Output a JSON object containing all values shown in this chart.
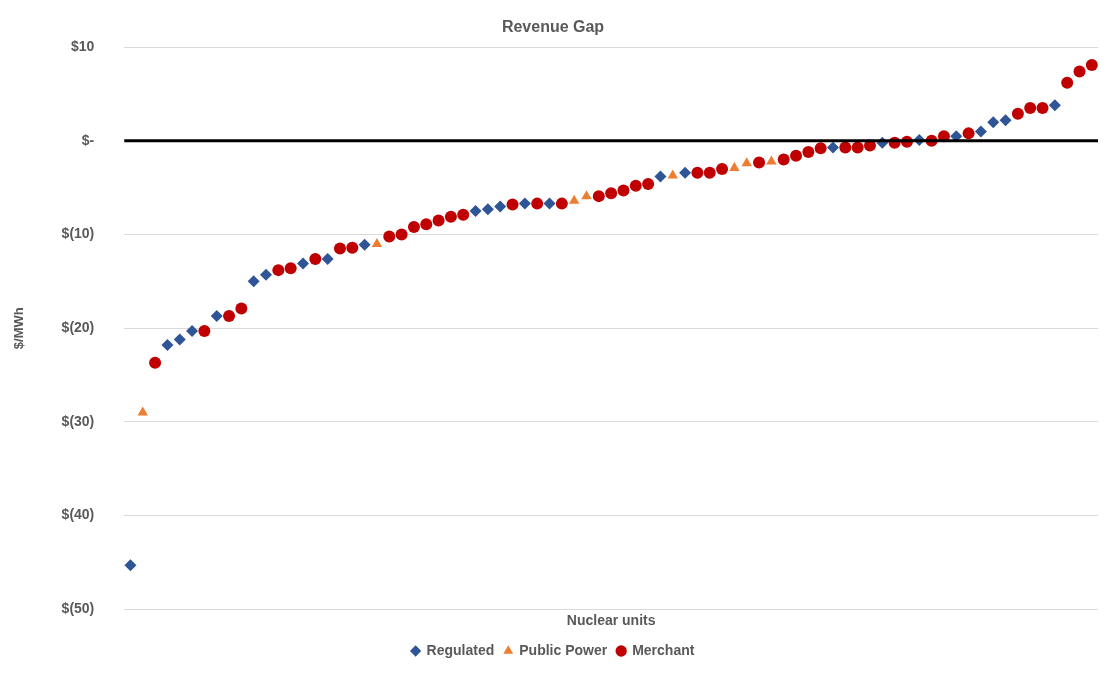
{
  "chart_data": {
    "type": "scatter",
    "title": "Revenue Gap",
    "xlabel": "Nuclear units",
    "ylabel": "$/MWh",
    "categories": [
      null,
      null,
      null,
      null,
      null,
      null,
      null,
      null,
      null,
      null,
      null,
      null,
      null,
      null,
      null,
      null,
      null,
      null,
      null,
      null,
      null,
      null,
      null,
      null,
      null,
      null,
      null,
      null,
      null,
      null,
      null,
      null,
      null,
      null,
      null,
      null,
      null,
      null,
      null,
      null,
      null,
      null,
      null,
      null,
      null,
      null,
      null,
      null,
      null,
      null,
      null,
      null,
      null,
      null,
      null,
      null,
      null,
      null,
      null,
      null,
      null,
      null,
      null,
      null,
      null,
      null,
      null,
      null,
      null,
      null,
      null,
      null,
      null,
      null,
      null,
      null,
      null,
      null,
      null
    ],
    "series": [
      {
        "name": "Regulated",
        "color": "#2f5597",
        "marker": "diamond",
        "values": [
          -45.3,
          null,
          null,
          -21.8,
          -21.2,
          -20.3,
          null,
          -18.7,
          null,
          null,
          -15.0,
          -14.3,
          null,
          null,
          -13.1,
          null,
          -12.6,
          null,
          null,
          -11.1,
          null,
          null,
          null,
          null,
          null,
          null,
          null,
          null,
          -7.5,
          -7.3,
          -7.0,
          null,
          -6.7,
          null,
          -6.7,
          null,
          null,
          null,
          null,
          null,
          null,
          null,
          null,
          -3.8,
          null,
          -3.4,
          null,
          null,
          null,
          null,
          null,
          null,
          null,
          null,
          null,
          null,
          null,
          -0.7,
          null,
          null,
          null,
          -0.2,
          null,
          null,
          0.1,
          null,
          null,
          0.5,
          null,
          1.0,
          2.0,
          2.2,
          null,
          null,
          null,
          3.8,
          null,
          null,
          null
        ]
      },
      {
        "name": "Public Power",
        "color": "#ed7d31",
        "marker": "triangle",
        "values": [
          null,
          -29,
          null,
          null,
          null,
          null,
          null,
          null,
          null,
          null,
          null,
          null,
          null,
          null,
          null,
          null,
          null,
          null,
          null,
          null,
          -11.0,
          null,
          null,
          null,
          null,
          null,
          null,
          null,
          null,
          null,
          null,
          null,
          null,
          null,
          null,
          null,
          -6.4,
          -5.9,
          null,
          null,
          null,
          null,
          null,
          null,
          -3.7,
          null,
          null,
          null,
          null,
          -2.9,
          -2.4,
          null,
          -2.2,
          null,
          null,
          null,
          null,
          null,
          null,
          null,
          null,
          null,
          null,
          null,
          null,
          null,
          null,
          null,
          null,
          null,
          null,
          null,
          null,
          null,
          null,
          null,
          null,
          null,
          null
        ]
      },
      {
        "name": "Merchant",
        "color": "#c00000",
        "marker": "circle",
        "values": [
          null,
          null,
          -23.7,
          null,
          null,
          null,
          -20.3,
          null,
          -18.7,
          -17.9,
          null,
          null,
          -13.8,
          -13.6,
          null,
          -12.6,
          null,
          -11.5,
          -11.4,
          null,
          null,
          -10.2,
          -10.0,
          -9.2,
          -8.9,
          -8.5,
          -8.1,
          -7.9,
          null,
          null,
          null,
          -6.8,
          null,
          -6.7,
          null,
          -6.7,
          null,
          null,
          -5.9,
          -5.6,
          -5.3,
          -4.8,
          -4.6,
          null,
          null,
          null,
          -3.4,
          -3.4,
          -3.0,
          null,
          null,
          -2.3,
          null,
          -2.0,
          -1.6,
          -1.2,
          -0.8,
          null,
          -0.7,
          -0.7,
          -0.5,
          null,
          -0.2,
          -0.1,
          null,
          0,
          0.5,
          null,
          0.8,
          null,
          null,
          null,
          2.9,
          3.5,
          3.5,
          null,
          6.2,
          7.4,
          8.1
        ]
      }
    ],
    "ylim": [
      -50,
      10
    ],
    "yticks": [
      {
        "value": 10,
        "label": "$10"
      },
      {
        "value": 0,
        "label": "$-"
      },
      {
        "value": -10,
        "label": "$(10)"
      },
      {
        "value": -20,
        "label": "$(20)"
      },
      {
        "value": -30,
        "label": "$(30)"
      },
      {
        "value": -40,
        "label": "$(40)"
      },
      {
        "value": -50,
        "label": "$(50)"
      }
    ],
    "ref_lines": [
      {
        "axis": "y",
        "value": 0,
        "color": "#000000"
      }
    ],
    "grid": "y",
    "legend": "bottom",
    "tick_labels": "y"
  }
}
